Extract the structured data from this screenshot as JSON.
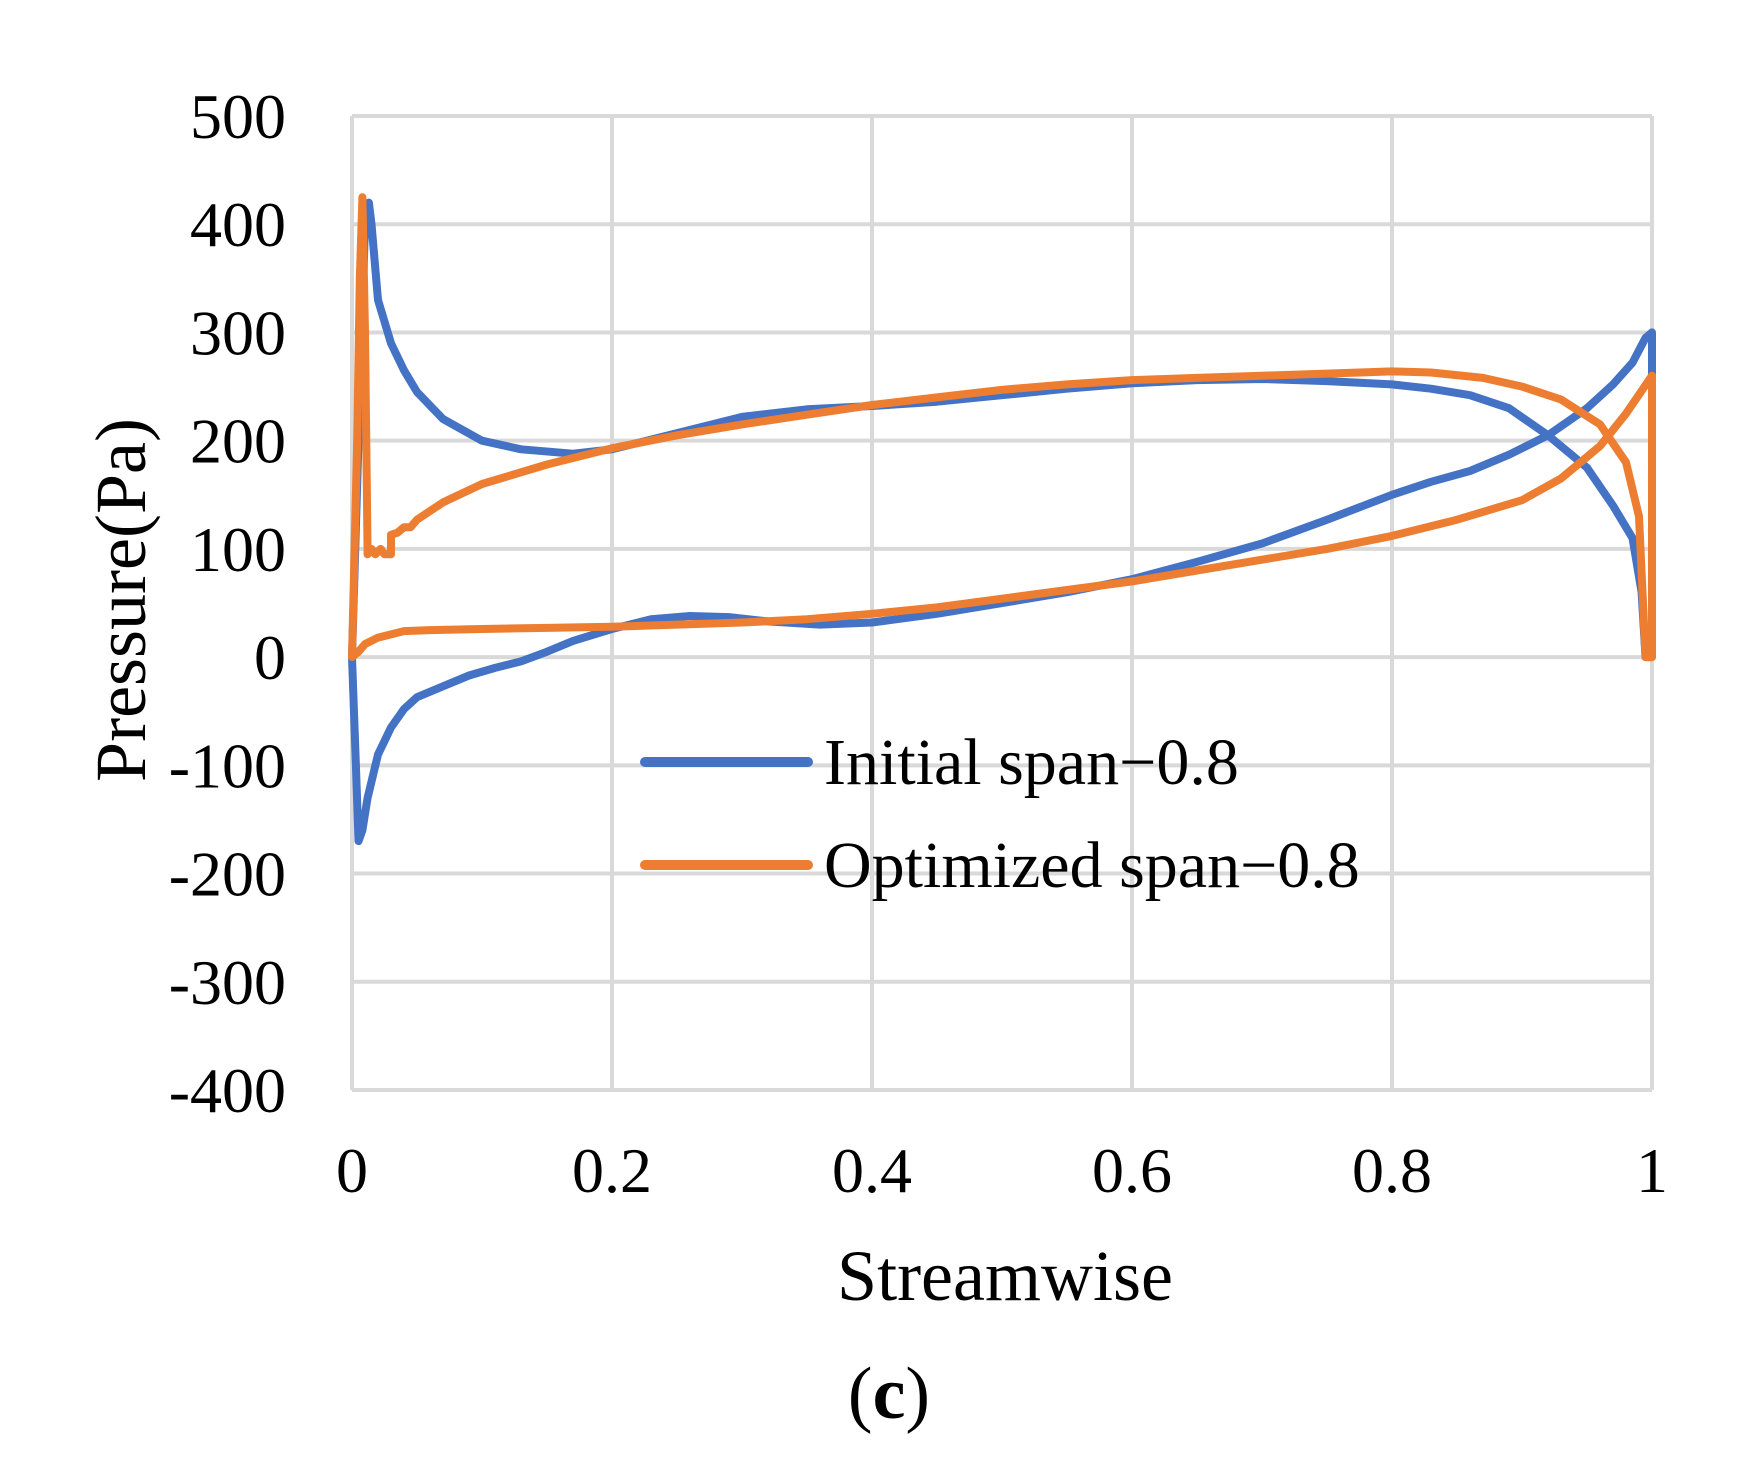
{
  "panel_label": {
    "open": "(",
    "letter": "c",
    "close": ")"
  },
  "chart_data": {
    "type": "line",
    "title": "",
    "xlabel": "Streamwise",
    "ylabel": "Pressure(Pa)",
    "xlim": [
      0,
      1
    ],
    "ylim": [
      -400,
      500
    ],
    "xticks": [
      0,
      0.2,
      0.4,
      0.6,
      0.8,
      1
    ],
    "xtick_labels": [
      "0",
      "0.2",
      "0.4",
      "0.6",
      "0.8",
      "1"
    ],
    "yticks": [
      -400,
      -300,
      -200,
      -100,
      0,
      100,
      200,
      300,
      400,
      500
    ],
    "ytick_labels": [
      "-400",
      "-300",
      "-200",
      "-100",
      "0",
      "100",
      "200",
      "300",
      "400",
      "500"
    ],
    "grid": true,
    "legend_position": "center-right",
    "series": [
      {
        "name": "Initial span−0.8",
        "color": "#4472C4",
        "points": [
          [
            0.0,
            0
          ],
          [
            0.003,
            -100
          ],
          [
            0.005,
            -170
          ],
          [
            0.008,
            -160
          ],
          [
            0.012,
            -130
          ],
          [
            0.02,
            -90
          ],
          [
            0.03,
            -65
          ],
          [
            0.04,
            -48
          ],
          [
            0.05,
            -37
          ],
          [
            0.07,
            -27
          ],
          [
            0.09,
            -17
          ],
          [
            0.11,
            -10
          ],
          [
            0.13,
            -4
          ],
          [
            0.15,
            5
          ],
          [
            0.17,
            15
          ],
          [
            0.2,
            26
          ],
          [
            0.23,
            35
          ],
          [
            0.26,
            38
          ],
          [
            0.29,
            37
          ],
          [
            0.32,
            33
          ],
          [
            0.36,
            30
          ],
          [
            0.4,
            32
          ],
          [
            0.45,
            40
          ],
          [
            0.5,
            50
          ],
          [
            0.55,
            60
          ],
          [
            0.6,
            72
          ],
          [
            0.65,
            88
          ],
          [
            0.7,
            105
          ],
          [
            0.75,
            127
          ],
          [
            0.8,
            150
          ],
          [
            0.83,
            162
          ],
          [
            0.86,
            172
          ],
          [
            0.89,
            187
          ],
          [
            0.92,
            205
          ],
          [
            0.95,
            230
          ],
          [
            0.97,
            252
          ],
          [
            0.985,
            272
          ],
          [
            0.995,
            295
          ],
          [
            1.0,
            300
          ],
          [
            1.0,
            0
          ],
          [
            0.995,
            0
          ],
          [
            0.992,
            60
          ],
          [
            0.985,
            110
          ],
          [
            0.97,
            140
          ],
          [
            0.95,
            175
          ],
          [
            0.92,
            205
          ],
          [
            0.89,
            230
          ],
          [
            0.86,
            242
          ],
          [
            0.83,
            248
          ],
          [
            0.8,
            252
          ],
          [
            0.75,
            255
          ],
          [
            0.7,
            257
          ],
          [
            0.65,
            256
          ],
          [
            0.6,
            253
          ],
          [
            0.55,
            248
          ],
          [
            0.5,
            242
          ],
          [
            0.45,
            236
          ],
          [
            0.4,
            232
          ],
          [
            0.35,
            229
          ],
          [
            0.3,
            222
          ],
          [
            0.25,
            207
          ],
          [
            0.2,
            192
          ],
          [
            0.17,
            188
          ],
          [
            0.13,
            192
          ],
          [
            0.1,
            200
          ],
          [
            0.07,
            220
          ],
          [
            0.05,
            245
          ],
          [
            0.04,
            265
          ],
          [
            0.03,
            290
          ],
          [
            0.025,
            310
          ],
          [
            0.02,
            330
          ],
          [
            0.015,
            400
          ],
          [
            0.013,
            420
          ],
          [
            0.01,
            400
          ],
          [
            0.0,
            0
          ]
        ]
      },
      {
        "name": "Optimized span−0.8",
        "color": "#ED7D31",
        "points": [
          [
            0.0,
            0
          ],
          [
            0.005,
            5
          ],
          [
            0.01,
            12
          ],
          [
            0.02,
            18
          ],
          [
            0.04,
            24
          ],
          [
            0.06,
            25
          ],
          [
            0.1,
            26
          ],
          [
            0.15,
            27
          ],
          [
            0.2,
            28
          ],
          [
            0.25,
            30
          ],
          [
            0.3,
            32
          ],
          [
            0.35,
            35
          ],
          [
            0.4,
            40
          ],
          [
            0.45,
            46
          ],
          [
            0.5,
            54
          ],
          [
            0.55,
            62
          ],
          [
            0.6,
            70
          ],
          [
            0.65,
            80
          ],
          [
            0.7,
            90
          ],
          [
            0.75,
            100
          ],
          [
            0.8,
            112
          ],
          [
            0.85,
            127
          ],
          [
            0.9,
            145
          ],
          [
            0.93,
            165
          ],
          [
            0.96,
            195
          ],
          [
            0.98,
            225
          ],
          [
            1.0,
            260
          ],
          [
            1.0,
            0
          ],
          [
            0.995,
            0
          ],
          [
            0.99,
            130
          ],
          [
            0.98,
            180
          ],
          [
            0.96,
            215
          ],
          [
            0.93,
            238
          ],
          [
            0.9,
            250
          ],
          [
            0.87,
            258
          ],
          [
            0.83,
            263
          ],
          [
            0.8,
            264
          ],
          [
            0.75,
            262
          ],
          [
            0.7,
            260
          ],
          [
            0.65,
            258
          ],
          [
            0.6,
            256
          ],
          [
            0.55,
            252
          ],
          [
            0.5,
            247
          ],
          [
            0.45,
            240
          ],
          [
            0.4,
            233
          ],
          [
            0.35,
            224
          ],
          [
            0.3,
            215
          ],
          [
            0.25,
            205
          ],
          [
            0.2,
            193
          ],
          [
            0.15,
            178
          ],
          [
            0.1,
            160
          ],
          [
            0.07,
            143
          ],
          [
            0.05,
            127
          ],
          [
            0.045,
            120
          ],
          [
            0.04,
            120
          ],
          [
            0.035,
            115
          ],
          [
            0.03,
            113
          ],
          [
            0.03,
            95
          ],
          [
            0.025,
            95
          ],
          [
            0.022,
            100
          ],
          [
            0.018,
            95
          ],
          [
            0.015,
            100
          ],
          [
            0.012,
            95
          ],
          [
            0.01,
            300
          ],
          [
            0.008,
            425
          ],
          [
            0.006,
            350
          ],
          [
            0.004,
            200
          ],
          [
            0.0,
            0
          ]
        ]
      }
    ]
  }
}
